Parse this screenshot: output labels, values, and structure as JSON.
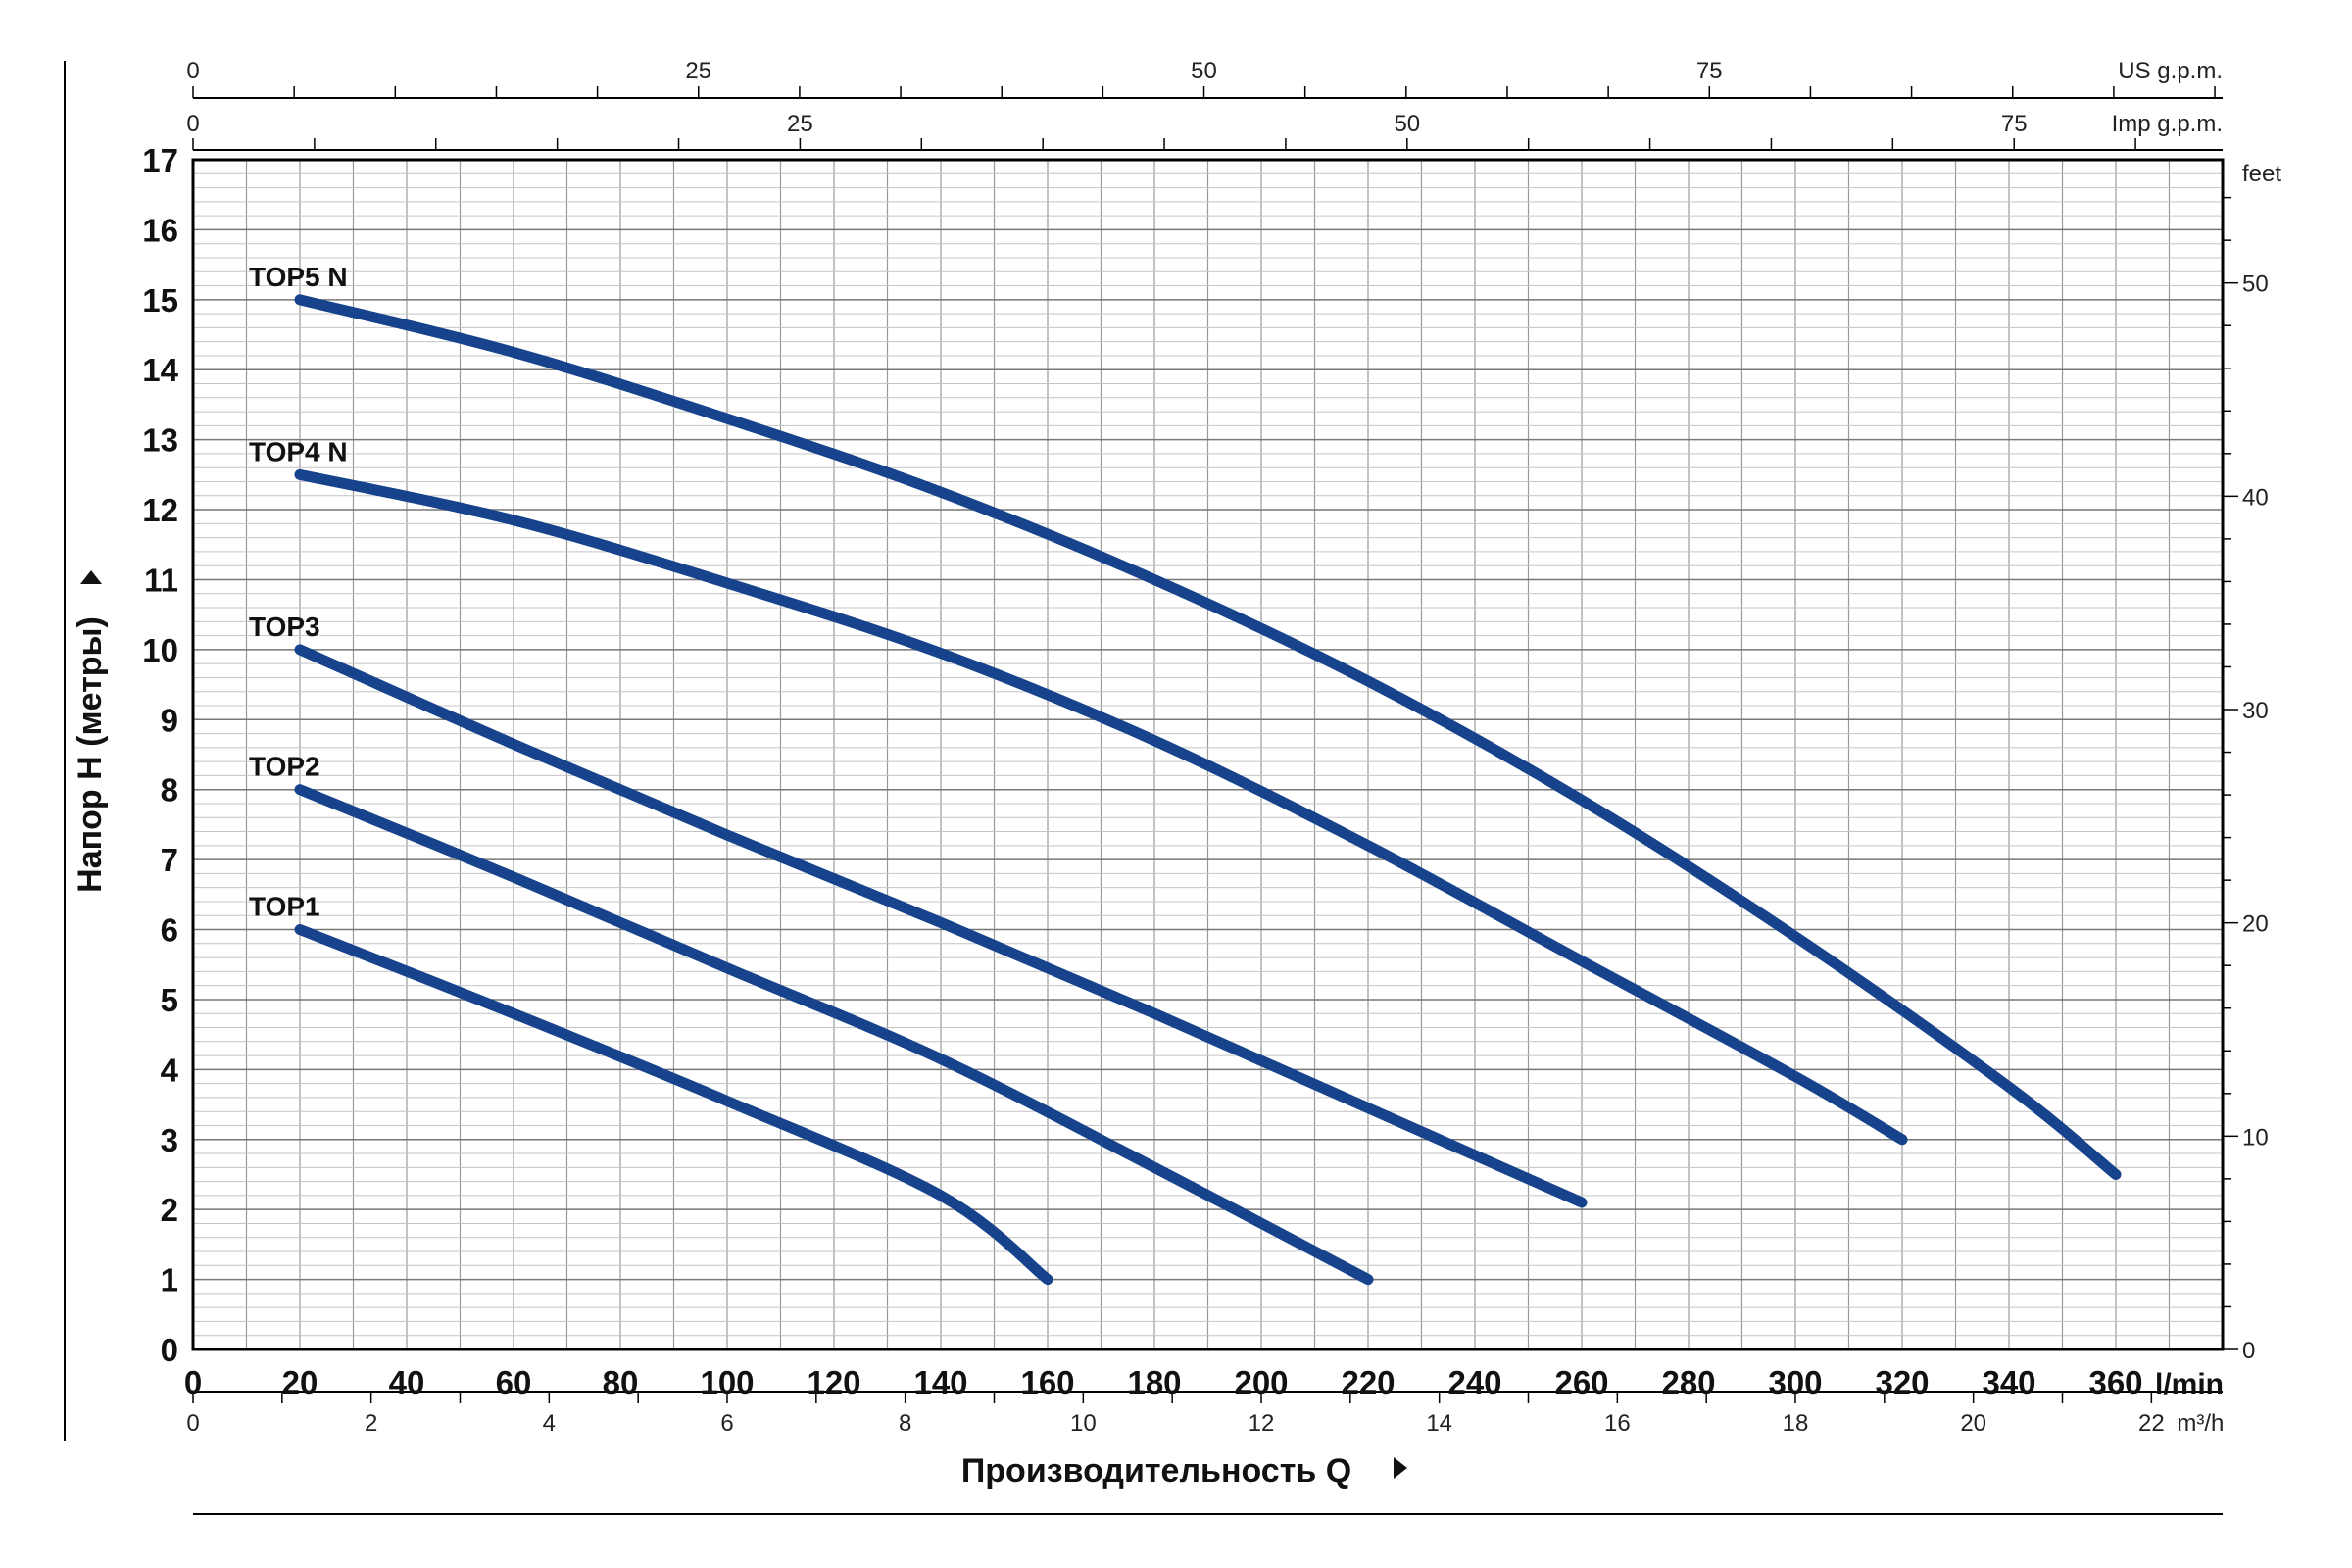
{
  "chart_data": {
    "type": "line",
    "xlabel": "Производительность Q",
    "ylabel": "Напор H (метры)",
    "x_unit": "l/min",
    "xlim": [
      0,
      380
    ],
    "ylim": [
      0,
      17
    ],
    "x_ticks": [
      0,
      20,
      40,
      60,
      80,
      100,
      120,
      140,
      160,
      180,
      200,
      220,
      240,
      260,
      280,
      300,
      320,
      340,
      360
    ],
    "y_ticks": [
      0,
      1,
      2,
      3,
      4,
      5,
      6,
      7,
      8,
      9,
      10,
      11,
      12,
      13,
      14,
      15,
      16,
      17
    ],
    "grid": true,
    "secondary_axes": {
      "us_gpm": {
        "label": "US g.p.m.",
        "ticks": [
          0,
          25,
          50,
          75
        ]
      },
      "imp_gpm": {
        "label": "Imp g.p.m.",
        "ticks": [
          0,
          25,
          50,
          75
        ]
      },
      "feet": {
        "label": "feet",
        "ticks": [
          0,
          10,
          20,
          30,
          40,
          50
        ]
      },
      "m3h": {
        "label": "m³/h",
        "ticks": [
          0,
          2,
          4,
          6,
          8,
          10,
          12,
          14,
          16,
          18,
          20,
          22
        ]
      }
    },
    "series": [
      {
        "name": "TOP1",
        "x": [
          20,
          60,
          100,
          140,
          160
        ],
        "y": [
          6.0,
          4.8,
          3.55,
          2.2,
          1.0
        ]
      },
      {
        "name": "TOP2",
        "x": [
          20,
          60,
          100,
          140,
          180,
          220
        ],
        "y": [
          8.0,
          6.75,
          5.45,
          4.15,
          2.6,
          1.0
        ]
      },
      {
        "name": "TOP3",
        "x": [
          20,
          60,
          100,
          140,
          180,
          220,
          260
        ],
        "y": [
          10.0,
          8.65,
          7.35,
          6.1,
          4.8,
          3.45,
          2.1
        ]
      },
      {
        "name": "TOP4 N",
        "x": [
          20,
          60,
          100,
          140,
          180,
          220,
          260,
          300,
          320
        ],
        "y": [
          12.5,
          11.85,
          10.95,
          9.95,
          8.7,
          7.2,
          5.55,
          3.9,
          3.0
        ]
      },
      {
        "name": "TOP5 N",
        "x": [
          20,
          60,
          100,
          140,
          180,
          220,
          260,
          300,
          340,
          360
        ],
        "y": [
          15.0,
          14.25,
          13.3,
          12.25,
          11.0,
          9.55,
          7.85,
          5.9,
          3.75,
          2.5
        ]
      }
    ]
  }
}
